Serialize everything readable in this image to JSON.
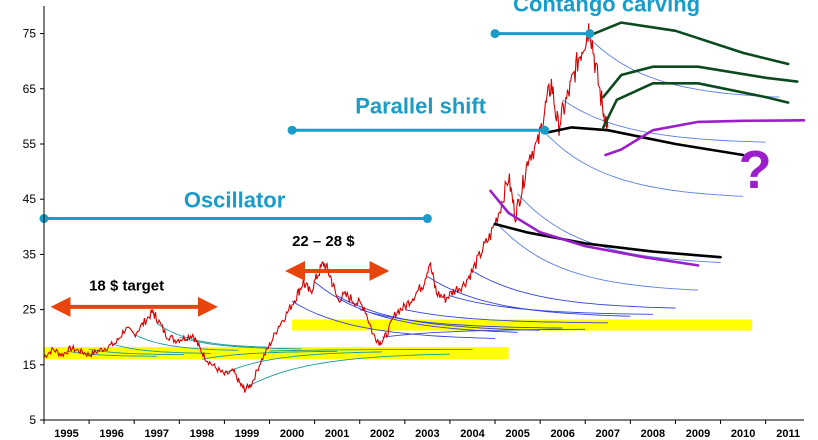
{
  "chart_data": {
    "type": "line",
    "title": "",
    "xlabel": "",
    "ylabel": "",
    "ylim": [
      5,
      80
    ],
    "xlim": [
      1994.5,
      2011.35
    ],
    "yticks": [
      5,
      15,
      25,
      35,
      45,
      55,
      65,
      75
    ],
    "xticks": [
      "1995",
      "1996",
      "1997",
      "1998",
      "1999",
      "2000",
      "2001",
      "2002",
      "2003",
      "2004",
      "2005",
      "2006",
      "2007",
      "2008",
      "2009",
      "2010",
      "2011"
    ],
    "grid": false,
    "colors": {
      "spot": "#d40000",
      "annotation": "#1a9cc9",
      "range_arrow": "#e8450c",
      "target_band": "#ffff00",
      "scenario": "#9b1fc8",
      "curve_early": "#1a9a9a",
      "curve_mid": "#3344dd",
      "curve_late": "#5b7fe8",
      "curve_highlight": "#000000",
      "curve_highlight_green": "#0b4a1e"
    },
    "spot_series": [
      [
        1994.5,
        16.5
      ],
      [
        1994.7,
        17.8
      ],
      [
        1994.9,
        16.8
      ],
      [
        1995.1,
        18.0
      ],
      [
        1995.3,
        17.5
      ],
      [
        1995.5,
        16.8
      ],
      [
        1995.7,
        17.5
      ],
      [
        1995.9,
        18.2
      ],
      [
        1996.1,
        19.0
      ],
      [
        1996.3,
        21.5
      ],
      [
        1996.5,
        20.5
      ],
      [
        1996.7,
        22.5
      ],
      [
        1996.9,
        24.5
      ],
      [
        1997.0,
        23.5
      ],
      [
        1997.2,
        20.5
      ],
      [
        1997.4,
        19.5
      ],
      [
        1997.6,
        19.8
      ],
      [
        1997.8,
        20.5
      ],
      [
        1997.95,
        18.0
      ],
      [
        1998.1,
        16.0
      ],
      [
        1998.3,
        14.5
      ],
      [
        1998.5,
        13.2
      ],
      [
        1998.7,
        13.8
      ],
      [
        1998.85,
        11.5
      ],
      [
        1998.95,
        10.5
      ],
      [
        1999.1,
        11.5
      ],
      [
        1999.3,
        15.5
      ],
      [
        1999.5,
        18.5
      ],
      [
        1999.7,
        22.0
      ],
      [
        1999.9,
        24.5
      ],
      [
        2000.1,
        27.5
      ],
      [
        2000.25,
        30.0
      ],
      [
        2000.4,
        28.0
      ],
      [
        2000.55,
        31.0
      ],
      [
        2000.7,
        33.5
      ],
      [
        2000.85,
        31.0
      ],
      [
        2001.0,
        27.0
      ],
      [
        2001.2,
        27.5
      ],
      [
        2001.4,
        26.5
      ],
      [
        2001.6,
        25.5
      ],
      [
        2001.8,
        20.5
      ],
      [
        2001.95,
        19.0
      ],
      [
        2002.1,
        20.5
      ],
      [
        2002.3,
        24.5
      ],
      [
        2002.5,
        25.5
      ],
      [
        2002.7,
        27.5
      ],
      [
        2002.9,
        29.5
      ],
      [
        2003.05,
        33.5
      ],
      [
        2003.2,
        28.0
      ],
      [
        2003.4,
        27.0
      ],
      [
        2003.6,
        28.5
      ],
      [
        2003.8,
        29.5
      ],
      [
        2004.0,
        32.0
      ],
      [
        2004.2,
        35.5
      ],
      [
        2004.4,
        38.5
      ],
      [
        2004.6,
        43.0
      ],
      [
        2004.8,
        49.0
      ],
      [
        2004.95,
        42.0
      ],
      [
        2005.1,
        47.0
      ],
      [
        2005.25,
        53.0
      ],
      [
        2005.45,
        55.0
      ],
      [
        2005.6,
        61.0
      ],
      [
        2005.75,
        66.0
      ],
      [
        2005.9,
        58.0
      ],
      [
        2006.05,
        62.0
      ],
      [
        2006.2,
        66.0
      ],
      [
        2006.35,
        70.5
      ],
      [
        2006.5,
        74.0
      ],
      [
        2006.6,
        76.5
      ],
      [
        2006.75,
        68.0
      ],
      [
        2006.9,
        61.0
      ],
      [
        2007.0,
        58.0
      ]
    ],
    "futures_curves": [
      {
        "start": [
          1995.0,
          17.5
        ],
        "end": [
          1997.0,
          16.5
        ],
        "group": "early"
      },
      {
        "start": [
          1995.5,
          17.8
        ],
        "end": [
          1997.6,
          16.8
        ],
        "group": "early"
      },
      {
        "start": [
          1996.0,
          18.8
        ],
        "end": [
          1998.2,
          17.0
        ],
        "group": "early"
      },
      {
        "start": [
          1996.5,
          20.5
        ],
        "end": [
          1998.8,
          17.5
        ],
        "group": "early"
      },
      {
        "start": [
          1997.0,
          22.5
        ],
        "end": [
          1999.5,
          18.0
        ],
        "group": "early"
      },
      {
        "start": [
          1997.5,
          20.0
        ],
        "end": [
          2000.2,
          17.8
        ],
        "group": "early"
      },
      {
        "start": [
          1998.0,
          16.0
        ],
        "end": [
          2001.0,
          17.5
        ],
        "group": "early"
      },
      {
        "start": [
          1998.5,
          13.5
        ],
        "end": [
          2002.0,
          17.5
        ],
        "group": "early"
      },
      {
        "start": [
          1999.0,
          11.0
        ],
        "end": [
          2003.5,
          17.2
        ],
        "group": "early"
      },
      {
        "start": [
          1999.5,
          17.5
        ],
        "end": [
          2004.0,
          17.8
        ],
        "group": "early"
      },
      {
        "start": [
          2000.0,
          26.5
        ],
        "end": [
          2004.5,
          19.5
        ],
        "group": "mid"
      },
      {
        "start": [
          2000.5,
          30.0
        ],
        "end": [
          2005.0,
          20.5
        ],
        "group": "mid"
      },
      {
        "start": [
          2001.0,
          27.5
        ],
        "end": [
          2005.5,
          21.0
        ],
        "group": "mid"
      },
      {
        "start": [
          2001.5,
          25.0
        ],
        "end": [
          2006.0,
          21.5
        ],
        "group": "mid"
      },
      {
        "start": [
          2002.0,
          20.0
        ],
        "end": [
          2006.5,
          21.5
        ],
        "group": "mid"
      },
      {
        "start": [
          2002.5,
          25.0
        ],
        "end": [
          2007.0,
          22.5
        ],
        "group": "mid"
      },
      {
        "start": [
          2003.0,
          31.0
        ],
        "end": [
          2007.5,
          23.5
        ],
        "group": "mid"
      },
      {
        "start": [
          2003.5,
          27.5
        ],
        "end": [
          2008.0,
          24.0
        ],
        "group": "mid"
      },
      {
        "start": [
          2004.0,
          32.0
        ],
        "end": [
          2008.5,
          25.0
        ],
        "group": "mid"
      },
      {
        "start": [
          2004.5,
          41.0
        ],
        "end": [
          2009.0,
          28.0
        ],
        "group": "late"
      },
      {
        "start": [
          2005.0,
          46.0
        ],
        "end": [
          2009.5,
          33.0
        ],
        "group": "late"
      },
      {
        "start": [
          2005.5,
          58.0
        ],
        "end": [
          2010.0,
          45.0
        ],
        "group": "late"
      },
      {
        "start": [
          2006.0,
          63.0
        ],
        "end": [
          2010.5,
          55.0
        ],
        "group": "late"
      },
      {
        "start": [
          2006.5,
          75.0
        ],
        "end": [
          2010.8,
          63.0
        ],
        "group": "late"
      }
    ],
    "highlight_curves": [
      {
        "points": [
          [
            2004.5,
            40.5
          ],
          [
            2005.2,
            39.0
          ],
          [
            2006.5,
            37.0
          ],
          [
            2008.0,
            35.5
          ],
          [
            2009.5,
            34.5
          ]
        ],
        "color": "curve_highlight"
      },
      {
        "points": [
          [
            2004.4,
            46.5
          ],
          [
            2004.8,
            42.5
          ],
          [
            2005.5,
            39.0
          ],
          [
            2006.5,
            36.5
          ],
          [
            2007.8,
            34.5
          ],
          [
            2009.0,
            33.0
          ]
        ],
        "color": "scenario"
      },
      {
        "points": [
          [
            2005.6,
            57.0
          ],
          [
            2006.2,
            58.0
          ],
          [
            2007.0,
            57.5
          ],
          [
            2008.5,
            55.0
          ],
          [
            2010.0,
            53.0
          ]
        ],
        "color": "curve_highlight"
      },
      {
        "points": [
          [
            2006.9,
            58.0
          ],
          [
            2007.2,
            63.0
          ],
          [
            2008.0,
            66.0
          ],
          [
            2009.0,
            66.0
          ],
          [
            2010.5,
            63.5
          ],
          [
            2011.0,
            62.5
          ]
        ],
        "color": "curve_highlight_green"
      },
      {
        "points": [
          [
            2006.9,
            63.5
          ],
          [
            2007.3,
            67.5
          ],
          [
            2008.0,
            69.0
          ],
          [
            2009.0,
            69.0
          ],
          [
            2010.5,
            67.0
          ],
          [
            2011.2,
            66.3
          ]
        ],
        "color": "curve_highlight_green"
      },
      {
        "points": [
          [
            2006.7,
            75.0
          ],
          [
            2007.3,
            77.0
          ],
          [
            2008.5,
            75.5
          ],
          [
            2010.0,
            71.5
          ],
          [
            2011.0,
            69.5
          ]
        ],
        "color": "curve_highlight_green"
      },
      {
        "points": [
          [
            2006.95,
            53.0
          ],
          [
            2007.3,
            54.0
          ],
          [
            2008.0,
            57.5
          ],
          [
            2009.0,
            59.0
          ],
          [
            2010.0,
            59.2
          ],
          [
            2011.35,
            59.3
          ]
        ],
        "color": "scenario"
      }
    ],
    "target_bands": [
      {
        "x": [
          1994.5,
          2004.8
        ],
        "y": [
          16.0,
          18.2
        ]
      },
      {
        "x": [
          2000.0,
          2010.2
        ],
        "y": [
          21.2,
          23.2
        ]
      }
    ],
    "annotations": [
      {
        "text": "Contango carving",
        "x": 2004.9,
        "y": 79.0,
        "size": 22
      },
      {
        "text": "Parallel shift",
        "x": 2001.4,
        "y": 60.5,
        "size": 22
      },
      {
        "text": "Oscillator",
        "x": 1997.6,
        "y": 43.5,
        "size": 22
      }
    ],
    "range_labels": [
      {
        "text": "18 $ target",
        "x": 1995.5,
        "y": 28.5,
        "size": 15
      },
      {
        "text": "22 – 28 $",
        "x": 2000.0,
        "y": 36.5,
        "size": 15
      }
    ],
    "scenario_label": {
      "text": "?",
      "x": 2009.9,
      "y": 47.0,
      "size": 54
    },
    "horizontal_lines": [
      {
        "x": [
          1994.5,
          2003.0
        ],
        "y": 41.5,
        "dot_ends": true
      },
      {
        "x": [
          2000.0,
          2005.6
        ],
        "y": 57.5,
        "dot_ends": true
      },
      {
        "x": [
          2004.5,
          2006.6
        ],
        "y": 75.0,
        "dot_ends": true
      }
    ],
    "range_arrows": [
      {
        "x": [
          1994.6,
          1998.4
        ],
        "y": 25.5
      },
      {
        "x": [
          1999.8,
          2002.2
        ],
        "y": 32.0
      }
    ]
  }
}
